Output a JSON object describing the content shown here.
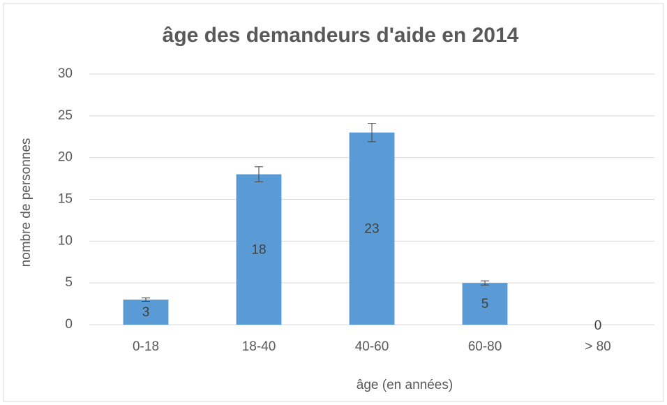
{
  "chart_data": {
    "type": "bar",
    "title": "âge des demandeurs d'aide en 2014",
    "x_label": "âge (en années)",
    "y_label": "nombre de personnes",
    "categories": [
      "0-18",
      "18-40",
      "40-60",
      "60-80",
      "> 80"
    ],
    "values": [
      3,
      18,
      23,
      5,
      0
    ],
    "errors": [
      0.2,
      0.9,
      1.1,
      0.25,
      0
    ],
    "color": "#5b9bd5",
    "ylim": [
      0,
      30
    ],
    "yticks": [
      0,
      5,
      10,
      15,
      20,
      25,
      30
    ],
    "grid": true
  }
}
